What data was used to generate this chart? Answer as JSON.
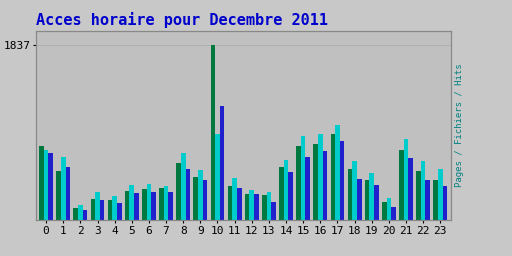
{
  "title": "Acces horaire pour Decembre 2011",
  "title_color": "#0000cc",
  "ylabel_right": "Pages / Fichiers / Hits",
  "ylabel_right_color": "#008080",
  "hours": [
    0,
    1,
    2,
    3,
    4,
    5,
    6,
    7,
    8,
    9,
    10,
    11,
    12,
    13,
    14,
    15,
    16,
    17,
    18,
    19,
    20,
    21,
    22,
    23
  ],
  "pages": [
    780,
    520,
    130,
    220,
    210,
    310,
    330,
    340,
    600,
    450,
    1837,
    360,
    270,
    260,
    560,
    780,
    800,
    900,
    540,
    420,
    195,
    740,
    510,
    420
  ],
  "hits": [
    740,
    660,
    160,
    290,
    255,
    370,
    375,
    360,
    700,
    530,
    900,
    440,
    320,
    290,
    630,
    880,
    900,
    1000,
    620,
    490,
    230,
    850,
    620,
    540
  ],
  "fichiers": [
    700,
    560,
    105,
    210,
    175,
    285,
    290,
    290,
    540,
    420,
    1200,
    340,
    270,
    195,
    500,
    660,
    720,
    830,
    430,
    370,
    135,
    650,
    420,
    360
  ],
  "color_pages": "#007840",
  "color_hits": "#00cccc",
  "color_fichiers": "#2020cc",
  "bg_color": "#c8c8c8",
  "plot_bg_color": "#c0c0c0",
  "ymax": 1837,
  "ytick_label": "1837",
  "title_fontsize": 11,
  "tick_fontsize": 8,
  "bar_width": 0.27
}
